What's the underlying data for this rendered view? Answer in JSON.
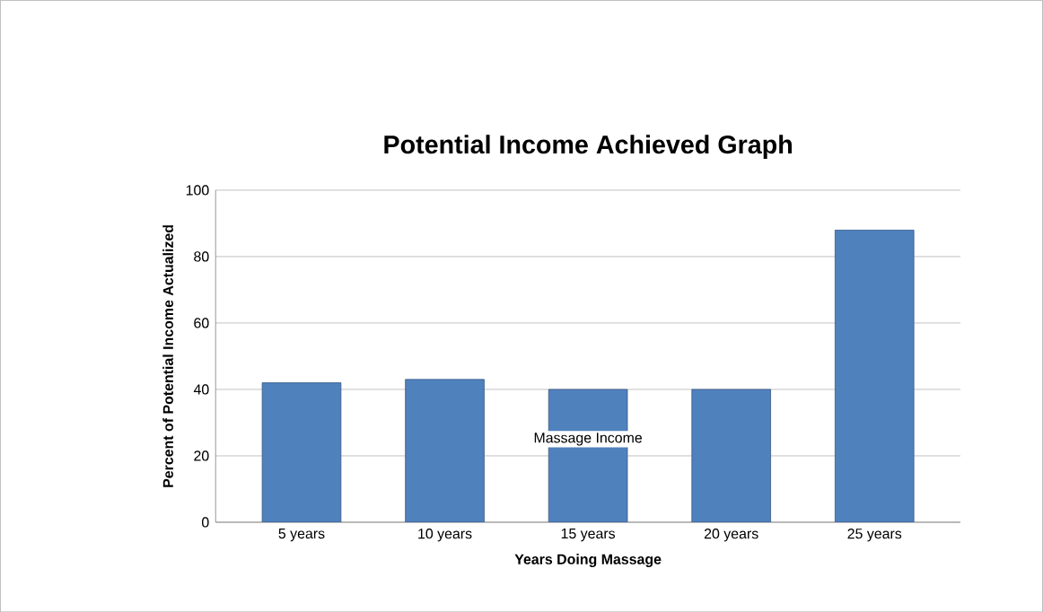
{
  "chart_data": {
    "type": "bar",
    "title": "Potential Income Achieved Graph",
    "xlabel": "Years Doing  Massage",
    "ylabel": "Percent of Potential Income Actualized",
    "categories": [
      "5 years",
      "10 years",
      "15 years",
      "20 years",
      "25 years"
    ],
    "series": [
      {
        "name": "Massage Income",
        "color": "#4f81bd",
        "values": [
          42,
          43,
          40,
          40,
          88
        ]
      }
    ],
    "ylim": [
      0,
      100
    ],
    "yticks": [
      0,
      20,
      40,
      60,
      80,
      100
    ],
    "grid": "y"
  }
}
